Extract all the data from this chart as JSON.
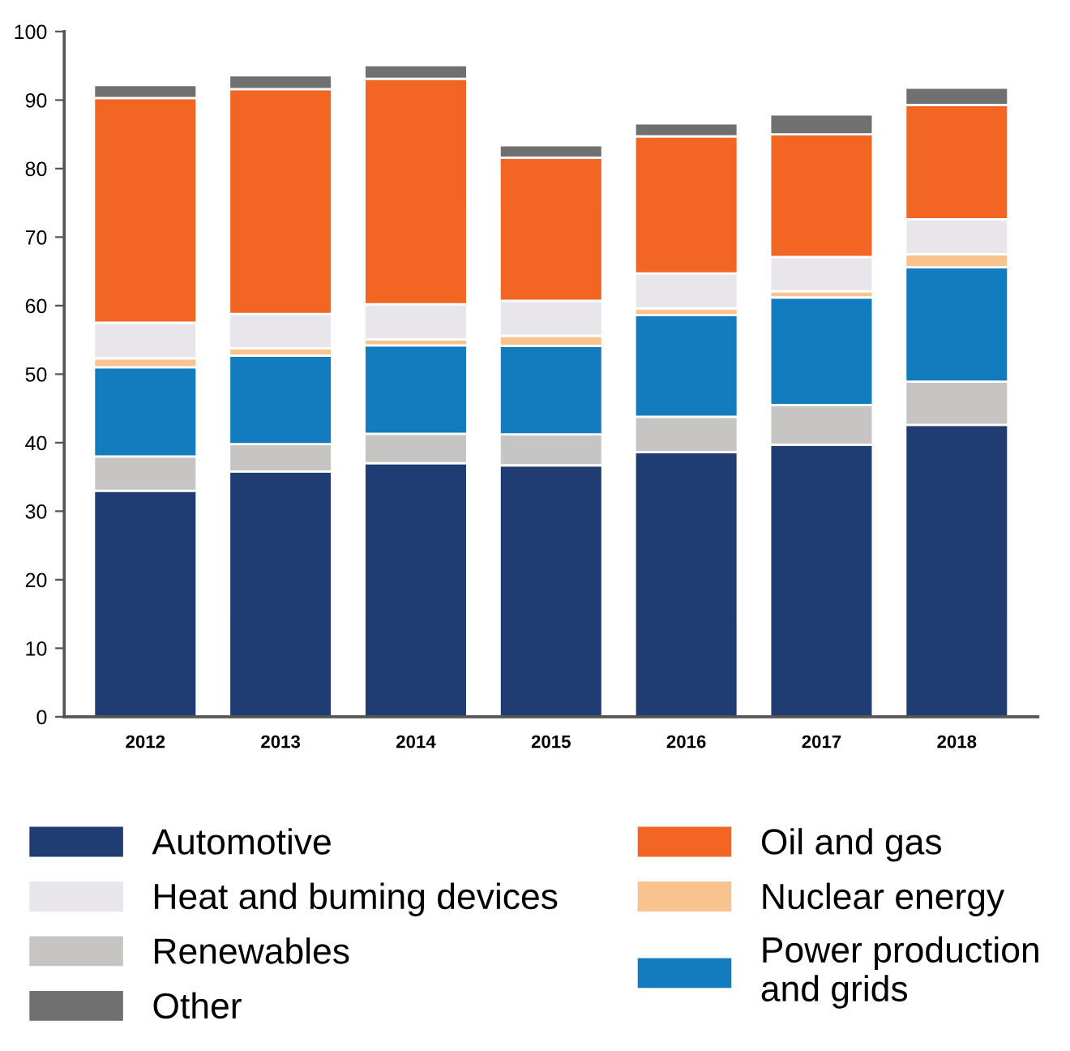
{
  "chart_data": {
    "type": "bar",
    "stacked": true,
    "categories": [
      "2012",
      "2013",
      "2014",
      "2015",
      "2016",
      "2017",
      "2018"
    ],
    "series": [
      {
        "name": "Automotive",
        "color": "#1f3d73",
        "values": [
          33,
          35.8,
          37,
          36.7,
          38.6,
          39.7,
          42.6
        ]
      },
      {
        "name": "Renewables",
        "color": "#c6c5c3",
        "values": [
          5,
          4,
          4.3,
          4.5,
          5.2,
          5.8,
          6.3
        ]
      },
      {
        "name": "Power production\nand grids",
        "color": "#137cbf",
        "values": [
          13,
          12.9,
          12.9,
          12.9,
          14.8,
          15.7,
          16.7
        ]
      },
      {
        "name": "Nuclear energy",
        "color": "#f8c38f",
        "values": [
          1.3,
          1.1,
          0.9,
          1.5,
          1,
          0.9,
          1.9
        ]
      },
      {
        "name": "Heat and buming devices",
        "color": "#e8e6eb",
        "values": [
          5.2,
          5,
          5.1,
          5.1,
          5.1,
          5,
          5.1
        ]
      },
      {
        "name": "Oil and gas",
        "color": "#f26522",
        "values": [
          32.8,
          32.8,
          32.9,
          20.9,
          20,
          17.9,
          16.7
        ]
      },
      {
        "name": "Other",
        "color": "#717070",
        "values": [
          1.9,
          2,
          2,
          1.8,
          1.9,
          2.9,
          2.5
        ]
      }
    ],
    "ylim": [
      0,
      100
    ],
    "yticks": [
      0,
      10,
      20,
      30,
      40,
      50,
      60,
      70,
      80,
      90,
      100
    ],
    "legend": "bottom"
  }
}
